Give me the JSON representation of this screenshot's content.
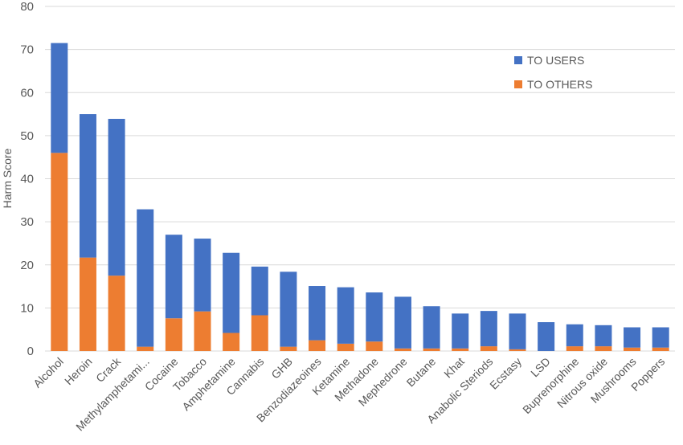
{
  "chart_data": {
    "type": "bar",
    "stacked": true,
    "title": "",
    "xlabel": "",
    "ylabel": "Harm Score",
    "ylim": [
      0,
      80
    ],
    "yticks": [
      0,
      10,
      20,
      30,
      40,
      50,
      60,
      70,
      80
    ],
    "grid": true,
    "legend_position": "top-right",
    "categories": [
      "Alcohol",
      "Heroin",
      "Crack",
      "Methylamphetami...",
      "Cocaine",
      "Tobacco",
      "Amphetamine",
      "Cannabis",
      "GHB",
      "Benzodiazeoines",
      "Ketamine",
      "Methadone",
      "Mephedrone",
      "Butane",
      "Khat",
      "Anabolic Steriods",
      "Ecstasy",
      "LSD",
      "Buprenorphine",
      "Nitrous oxide",
      "Mushrooms",
      "Poppers"
    ],
    "series": [
      {
        "name": "TO OTHERS",
        "color": "#ed7d31",
        "values": [
          46,
          21.7,
          17.5,
          1,
          7.6,
          9.2,
          4.2,
          8.3,
          1,
          2.5,
          1.7,
          2.2,
          0.6,
          0.6,
          0.6,
          1.1,
          0.4,
          0,
          1.1,
          1.1,
          0.8,
          0.8
        ]
      },
      {
        "name": "TO USERS",
        "color": "#4472c4",
        "values": [
          25.5,
          33.3,
          36.4,
          31.9,
          19.4,
          16.9,
          18.6,
          11.3,
          17.4,
          12.6,
          13.1,
          11.4,
          12,
          9.8,
          8.1,
          8.2,
          8.3,
          6.7,
          5.1,
          4.9,
          4.7,
          4.7
        ]
      }
    ]
  }
}
